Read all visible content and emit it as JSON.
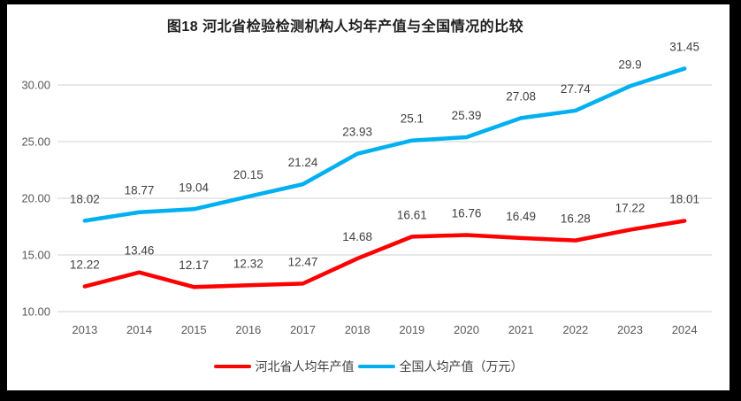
{
  "title": "图18 河北省检验检测机构人均年产值与全国情况的比较",
  "chart_data": {
    "type": "line",
    "title": "图18 河北省检验检测机构人均年产值与全国情况的比较",
    "xlabel": "",
    "ylabel": "",
    "categories": [
      "2013",
      "2014",
      "2015",
      "2016",
      "2017",
      "2018",
      "2019",
      "2020",
      "2021",
      "2022",
      "2023",
      "2024"
    ],
    "series": [
      {
        "name": "河北省人均年产值",
        "color": "#ff0000",
        "values": [
          12.22,
          13.46,
          12.17,
          12.32,
          12.47,
          14.68,
          16.61,
          16.76,
          16.49,
          16.28,
          17.22,
          18.01
        ],
        "labels": [
          "12.22",
          "13.46",
          "12.17",
          "12.32",
          "12.47",
          "14.68",
          "16.61",
          "16.76",
          "16.49",
          "16.28",
          "17.22",
          "18.01"
        ]
      },
      {
        "name": "全国人均产值（万元）",
        "color": "#00b0f0",
        "values": [
          18.02,
          18.77,
          19.04,
          20.15,
          21.24,
          23.93,
          25.1,
          25.39,
          27.08,
          27.74,
          29.9,
          31.45
        ],
        "labels": [
          "18.02",
          "18.77",
          "19.04",
          "20.15",
          "21.24",
          "23.93",
          "25.1",
          "25.39",
          "27.08",
          "27.74",
          "29.9",
          "31.45"
        ]
      }
    ],
    "ylim": [
      10,
      30
    ],
    "ytick_step": 5,
    "ytick_labels": [
      "10.00",
      "15.00",
      "20.00",
      "25.00",
      "30.00"
    ],
    "grid": "horizontal",
    "legend_position": "bottom"
  },
  "legend": {
    "items": [
      {
        "label": "河北省人均年产值",
        "color": "#ff0000"
      },
      {
        "label": "全国人均产值（万元）",
        "color": "#00b0f0"
      }
    ]
  },
  "colors": {
    "frame": "#000000",
    "canvas": "#ffffff",
    "grid": "#d9d9d9",
    "axis_text": "#595959",
    "data_label_text": "#404040",
    "title_text": "#1f1f1f"
  }
}
